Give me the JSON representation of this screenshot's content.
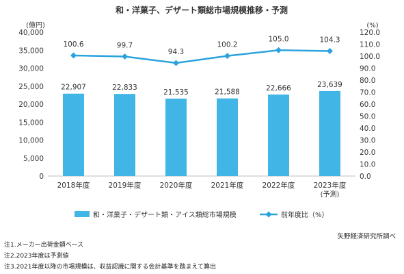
{
  "chart_data": {
    "type": "bar",
    "title": "和・洋菓子、デザート類総市場規模推移・予測",
    "left_unit": "(億円)",
    "right_unit": "(%)",
    "categories": [
      "2018年度",
      "2019年度",
      "2020年度",
      "2021年度",
      "2022年度",
      "2023年度"
    ],
    "category_sub": [
      "",
      "",
      "",
      "",
      "",
      "(予測)"
    ],
    "series": [
      {
        "name": "和・洋菓子・デザート類・アイス類総市場規模",
        "type": "bar",
        "axis": "left",
        "values": [
          22907,
          22833,
          21535,
          21588,
          22666,
          23639
        ],
        "labels": [
          "22,907",
          "22,833",
          "21,535",
          "21,588",
          "22,666",
          "23,639"
        ]
      },
      {
        "name": "前年度比（%）",
        "type": "line",
        "axis": "right",
        "values": [
          100.6,
          99.7,
          94.3,
          100.2,
          105.0,
          104.3
        ],
        "labels": [
          "100.6",
          "99.7",
          "94.3",
          "100.2",
          "105.0",
          "104.3"
        ]
      }
    ],
    "ylim_left": [
      0,
      40000
    ],
    "yticks_left": [
      "0",
      "5,000",
      "10,000",
      "15,000",
      "20,000",
      "25,000",
      "30,000",
      "35,000",
      "40,000"
    ],
    "ylim_right": [
      0,
      120
    ],
    "yticks_right": [
      "0.0",
      "10.0",
      "20.0",
      "30.0",
      "40.0",
      "50.0",
      "60.0",
      "70.0",
      "80.0",
      "90.0",
      "100.0",
      "110.0",
      "120.0"
    ],
    "grid": false,
    "legend": "bottom",
    "colors": {
      "bar": "#41b6e6",
      "line": "#2aa3dd",
      "axis": "#bfbfbf"
    }
  },
  "source": "矢野経済研究所調べ",
  "notes": [
    "注1.メーカー出荷金額ベース",
    "注2.2023年度は予測値",
    "注3.2021年度以降の市場規模は、収益認識に関する会計基準を踏まえて算出"
  ]
}
